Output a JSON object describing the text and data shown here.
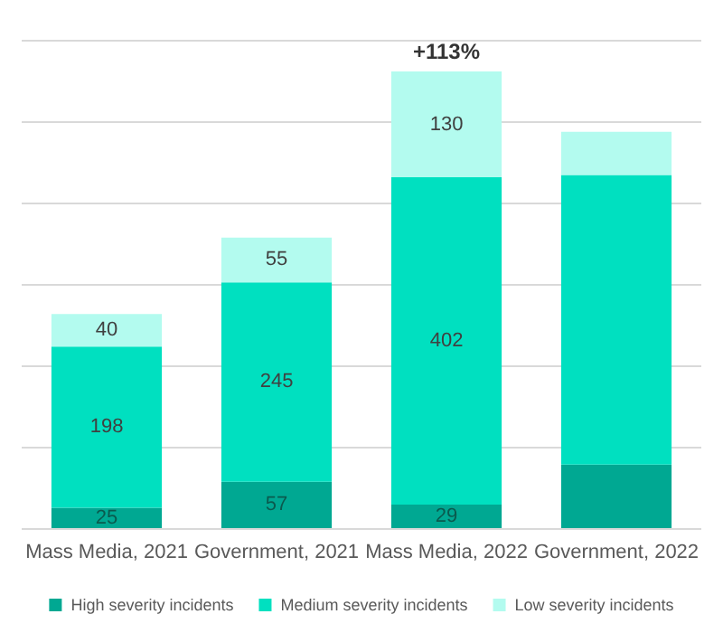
{
  "chart_data": {
    "type": "bar",
    "stacked": true,
    "categories": [
      "Mass Media, 2021",
      "Government, 2021",
      "Mass Media, 2022",
      "Government, 2022"
    ],
    "series": [
      {
        "name": "High severity incidents",
        "color": "#00a892",
        "values": [
          25,
          57,
          29,
          78
        ],
        "value_labels": [
          "25",
          "57",
          "29",
          null
        ]
      },
      {
        "name": "Medium severity incidents",
        "color": "#00e0c0",
        "values": [
          198,
          245,
          402,
          356
        ],
        "value_labels": [
          "198",
          "245",
          "402",
          null
        ]
      },
      {
        "name": "Low severity incidents",
        "color": "#b3fbef",
        "values": [
          40,
          55,
          130,
          53
        ],
        "value_labels": [
          "40",
          "55",
          "130",
          null
        ]
      }
    ],
    "annotations": [
      {
        "text": "+113%",
        "x": "Mass Media, 2022",
        "y": 561
      }
    ],
    "ylim": [
      0,
      600
    ],
    "yticks": [
      {
        "value": 0,
        "label": null
      },
      {
        "value": 100,
        "label": null
      },
      {
        "value": 200,
        "label": null
      },
      {
        "value": 300,
        "label": null
      },
      {
        "value": 400,
        "label": null
      },
      {
        "value": 500,
        "label": null
      },
      {
        "value": 600,
        "label": null
      }
    ],
    "grid": "y",
    "legend": "bottom",
    "tick_labels": "x"
  }
}
